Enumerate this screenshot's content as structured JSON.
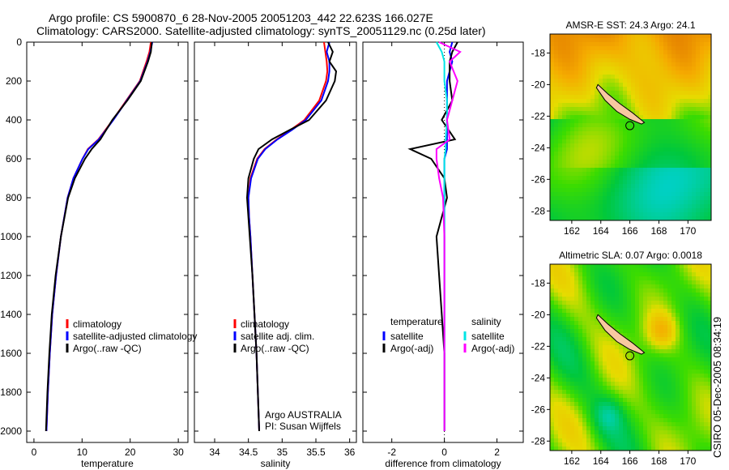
{
  "title_line1": "Argo profile: CS 5900870_6 28-Nov-2005 20051203_442 22.623S 166.027E",
  "title_line2": "Climatology: CARS2000. Satellite-adjusted climatology: synTS_20051129.nc (0.25d later)",
  "side_label": "CSIRO 05-Dec-2005 08:34:19",
  "colors": {
    "climatology": "#ff0000",
    "satellite": "#0000ff",
    "argo": "#000000",
    "sal_sat": "#00e5e5",
    "sal_argo": "#ff00ff"
  },
  "chart_data": [
    {
      "type": "line",
      "xlabel": "temperature",
      "ylabel": "",
      "xlim": [
        -1.5,
        32
      ],
      "ylim": [
        2050,
        0
      ],
      "xticks": [
        "0",
        "10",
        "20",
        "30"
      ],
      "yticks": [
        "0",
        "200",
        "400",
        "600",
        "800",
        "1000",
        "1200",
        "1400",
        "1600",
        "1800",
        "2000"
      ],
      "depth": [
        0,
        50,
        100,
        200,
        300,
        400,
        500,
        550,
        600,
        700,
        800,
        1000,
        1200,
        1400,
        1600,
        1800,
        2000
      ],
      "series": [
        {
          "name": "climatology",
          "color": "#ff0000",
          "values": [
            24.3,
            24,
            23.4,
            22,
            19.2,
            16.4,
            13.4,
            11.2,
            10.1,
            8.2,
            7,
            5.6,
            4.6,
            3.8,
            3.3,
            2.9,
            2.6
          ]
        },
        {
          "name": "satellite-adjusted climatology",
          "color": "#0000ff",
          "values": [
            24.6,
            24.2,
            23.6,
            22.1,
            19.3,
            16.5,
            13.5,
            11.3,
            10.1,
            8.2,
            7,
            5.6,
            4.6,
            3.8,
            3.3,
            2.9,
            2.6
          ]
        },
        {
          "name": "Argo(..raw -QC)",
          "color": "#000000",
          "values": [
            24.5,
            24.3,
            23.7,
            22.2,
            19.4,
            16.3,
            13.8,
            12,
            10.6,
            8.5,
            7.1,
            5.6,
            4.5,
            3.7,
            3.2,
            2.8,
            2.5
          ]
        }
      ],
      "legend": [
        "climatology",
        "satellite-adjusted climatology",
        "Argo(..raw -QC)"
      ],
      "legend_position": "lower-right"
    },
    {
      "type": "line",
      "xlabel": "salinity",
      "xlim": [
        33.7,
        36.1
      ],
      "ylim": [
        2050,
        0
      ],
      "xticks": [
        "34",
        "34.5",
        "35",
        "35.5",
        "36"
      ],
      "depth": [
        0,
        50,
        100,
        150,
        200,
        300,
        400,
        450,
        500,
        550,
        600,
        700,
        800,
        900,
        1000,
        1200,
        1400,
        1600,
        1800,
        2000
      ],
      "series": [
        {
          "name": "climatology",
          "color": "#ff0000",
          "values": [
            35.62,
            35.64,
            35.66,
            35.67,
            35.65,
            35.55,
            35.33,
            35.13,
            34.92,
            34.74,
            34.63,
            34.53,
            34.5,
            34.51,
            34.53,
            34.56,
            34.59,
            34.62,
            34.64,
            34.66
          ]
        },
        {
          "name": "satellite adj. clim.",
          "color": "#0000ff",
          "values": [
            35.7,
            35.66,
            35.7,
            35.7,
            35.68,
            35.58,
            35.35,
            35.15,
            34.93,
            34.75,
            34.64,
            34.54,
            34.5,
            34.51,
            34.53,
            34.56,
            34.59,
            34.62,
            34.64,
            34.66
          ]
        },
        {
          "name": "Argo(..raw -QC)",
          "color": "#000000",
          "values": [
            35.68,
            35.75,
            35.7,
            35.8,
            35.78,
            35.65,
            35.4,
            35.12,
            34.85,
            34.65,
            34.58,
            34.5,
            34.48,
            34.5,
            34.52,
            34.56,
            34.59,
            34.62,
            34.64,
            34.66
          ]
        }
      ],
      "legend": [
        "climatology",
        "satellite adj. clim.",
        "Argo(..raw -QC)"
      ],
      "legend_position": "lower-right",
      "annotation": [
        "Argo AUSTRALIA",
        "PI: Susan Wijffels"
      ]
    },
    {
      "type": "line",
      "xlabel": "difference from climatology",
      "xlim": [
        -3.1,
        3
      ],
      "ylim": [
        2050,
        0
      ],
      "xticks": [
        "-2",
        "0",
        "2"
      ],
      "depth": [
        0,
        50,
        100,
        200,
        300,
        400,
        500,
        550,
        600,
        700,
        800,
        1000,
        1200,
        1400,
        1600,
        1800,
        2000
      ],
      "series": [
        {
          "name": "temperature satellite",
          "color": "#0000ff",
          "values": [
            0.3,
            0.2,
            0.3,
            0.1,
            0.1,
            0.1,
            0.1,
            0.1,
            0,
            0,
            0,
            0,
            0,
            0,
            0,
            0,
            0
          ]
        },
        {
          "name": "temperature Argo(-adj)",
          "color": "#000000",
          "values": [
            0.5,
            0.3,
            0.2,
            0.2,
            0.3,
            -0.1,
            0.4,
            -1.3,
            -0.5,
            0,
            0.1,
            -0.3,
            -0.2,
            -0.1,
            0,
            0,
            0
          ]
        },
        {
          "name": "salinity satellite",
          "color": "#00e5e5",
          "values": [
            -0.3,
            -0.1,
            0,
            0,
            0.1,
            0.1,
            0.05,
            0.05,
            0,
            0,
            0,
            0,
            0,
            0,
            0,
            0,
            0
          ]
        },
        {
          "name": "salinity Argo(-adj)",
          "color": "#ff00ff",
          "values": [
            -0.2,
            0.6,
            0.2,
            0.5,
            0.3,
            0.1,
            0.2,
            -0.3,
            -0.3,
            -0.2,
            -0.05,
            0,
            0,
            0,
            0,
            0,
            0
          ]
        }
      ],
      "legend_headers": [
        "temperature",
        "salinity"
      ],
      "legend": [
        "satellite",
        "Argo(-adj)",
        "satellite",
        "Argo(-adj)"
      ],
      "legend_position": "lower"
    }
  ],
  "maps": [
    {
      "title": "AMSR-E SST: 24.3 Argo: 24.1",
      "xticks": [
        "162",
        "164",
        "166",
        "168",
        "170"
      ],
      "yticks": [
        "-18",
        "-20",
        "-22",
        "-24",
        "-26",
        "-28"
      ],
      "lon": [
        160.5,
        171.6
      ],
      "lat": [
        -16.8,
        -28.6
      ],
      "argo_lon": 166.0,
      "argo_lat": -22.6
    },
    {
      "title": "Altimetric SLA: 0.07 Argo: 0.0018",
      "xticks": [
        "162",
        "164",
        "166",
        "168",
        "170"
      ],
      "yticks": [
        "-18",
        "-20",
        "-22",
        "-24",
        "-26",
        "-28"
      ],
      "lon": [
        160.5,
        171.6
      ],
      "lat": [
        -16.8,
        -28.6
      ],
      "argo_lon": 166.0,
      "argo_lat": -22.6
    }
  ]
}
